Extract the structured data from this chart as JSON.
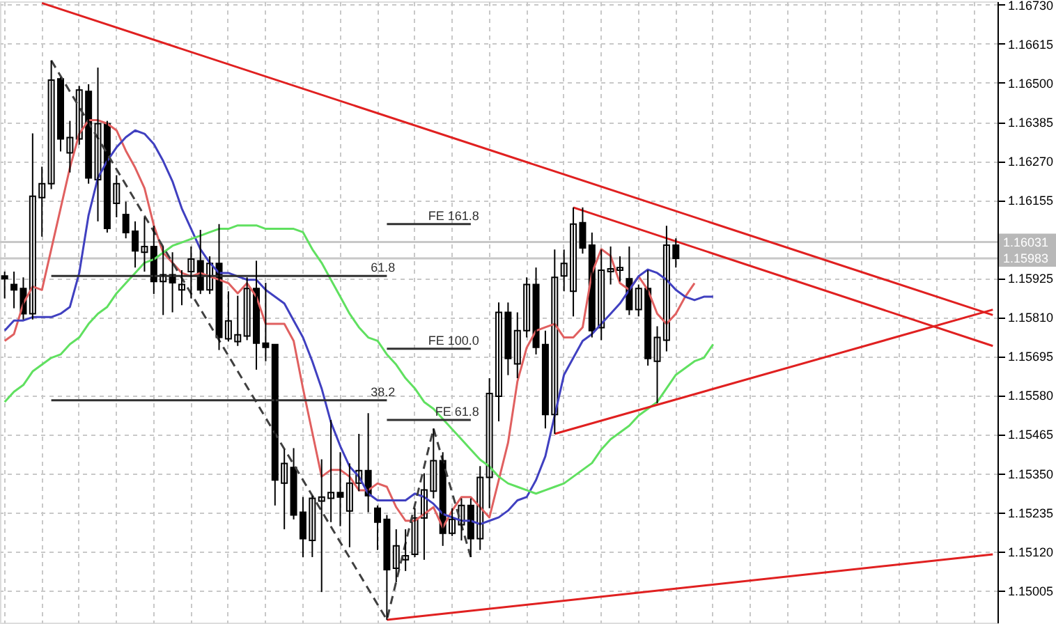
{
  "chart_data": {
    "type": "candlestick",
    "categories": [
      null,
      null,
      null,
      null,
      null,
      null,
      null,
      null,
      null,
      null,
      null,
      null,
      null,
      null,
      null,
      null,
      null,
      null,
      null,
      null,
      null,
      null,
      null,
      null,
      null,
      null,
      null,
      null,
      null,
      null,
      null,
      null,
      null,
      null,
      null,
      null,
      null,
      null,
      null,
      null,
      null,
      null,
      null,
      null,
      null,
      null,
      null,
      null,
      null,
      null,
      null,
      null,
      null,
      null,
      null,
      null,
      null,
      null,
      null,
      null,
      null,
      null,
      null,
      null,
      null,
      null,
      null,
      null,
      null,
      null,
      null,
      null,
      null,
      null,
      null,
      null,
      null,
      null,
      null,
      null,
      null,
      null,
      null,
      null,
      null,
      null,
      null,
      null,
      null,
      null,
      null,
      null,
      null,
      null,
      null,
      null,
      null,
      null,
      null,
      null,
      null,
      null,
      null,
      null,
      null,
      null,
      null
    ],
    "ohlc": [
      [
        1.15931,
        1.15944,
        1.15865,
        1.15923
      ],
      [
        1.15906,
        1.15944,
        1.15836,
        1.1589
      ],
      [
        1.15894,
        1.15927,
        1.15803,
        1.1582
      ],
      [
        1.1582,
        1.16351,
        1.15803,
        1.16166
      ],
      [
        1.16162,
        1.16253,
        1.16047,
        1.16203
      ],
      [
        1.16203,
        1.16566,
        1.16187,
        1.16508
      ],
      [
        1.16512,
        1.16516,
        1.16298,
        1.16335
      ],
      [
        1.16294,
        1.16388,
        1.16236,
        1.16339
      ],
      [
        1.16335,
        1.16491,
        1.16318,
        1.16479
      ],
      [
        1.16475,
        1.16496,
        1.16203,
        1.1622
      ],
      [
        1.16215,
        1.16545,
        1.16092,
        1.1638
      ],
      [
        1.1638,
        1.16388,
        1.16059,
        1.16071
      ],
      [
        1.16145,
        1.16228,
        1.16104,
        1.16203
      ],
      [
        1.16112,
        1.1615,
        1.16042,
        1.16059
      ],
      [
        1.16063,
        1.16092,
        1.15956,
        1.16005
      ],
      [
        1.16001,
        1.16104,
        1.15944,
        1.16018
      ],
      [
        1.16018,
        1.16079,
        1.15878,
        1.15915
      ],
      [
        1.15915,
        1.16018,
        1.15816,
        1.15935
      ],
      [
        1.15935,
        1.16001,
        1.15824,
        1.15911
      ],
      [
        1.1589,
        1.15948,
        1.15845,
        1.15906
      ],
      [
        1.15944,
        1.16018,
        1.15865,
        1.15981
      ],
      [
        1.15976,
        1.16067,
        1.15878,
        1.1589
      ],
      [
        1.1589,
        1.15989,
        1.15878,
        1.15968
      ],
      [
        1.15968,
        1.16084,
        1.15713,
        1.1575
      ],
      [
        1.15746,
        1.15886,
        1.15738,
        1.15799
      ],
      [
        1.15738,
        1.15873,
        1.15725,
        1.15758
      ],
      [
        1.15754,
        1.15927,
        1.15742,
        1.15894
      ],
      [
        1.15894,
        1.15976,
        1.15655,
        1.15733
      ],
      [
        1.15733,
        1.15911,
        1.1568,
        1.15721
      ],
      [
        1.15729,
        1.15729,
        1.15255,
        1.1533
      ],
      [
        1.15321,
        1.1542,
        1.15185,
        1.15379
      ],
      [
        1.15367,
        1.15424,
        1.15214,
        1.15227
      ],
      [
        1.15235,
        1.1528,
        1.15103,
        1.15157
      ],
      [
        1.15152,
        1.15284,
        1.15103,
        1.15276
      ],
      [
        1.15268,
        1.15391,
        1.15,
        1.1528
      ],
      [
        1.15276,
        1.15507,
        1.15206,
        1.15293
      ],
      [
        1.15293,
        1.15412,
        1.15194,
        1.1528
      ],
      [
        1.15239,
        1.15379,
        1.15132,
        1.15321
      ],
      [
        1.15321,
        1.15466,
        1.15297,
        1.15358
      ],
      [
        1.15358,
        1.15527,
        1.15235,
        1.15284
      ],
      [
        1.15247,
        1.15255,
        1.15124,
        1.15206
      ],
      [
        1.15214,
        1.15227,
        1.14918,
        1.15066
      ],
      [
        1.1507,
        1.15185,
        1.15029,
        1.15136
      ],
      [
        1.15095,
        1.15185,
        1.15062,
        1.15107
      ],
      [
        1.15111,
        1.15247,
        1.15103,
        1.15218
      ],
      [
        1.15218,
        1.1535,
        1.15095,
        1.15301
      ],
      [
        1.15297,
        1.15482,
        1.15276,
        1.15387
      ],
      [
        1.15387,
        1.15412,
        1.15136,
        1.15173
      ],
      [
        1.15173,
        1.15247,
        1.15165,
        1.15214
      ],
      [
        1.15198,
        1.15276,
        1.15152,
        1.15255
      ],
      [
        1.15255,
        1.15276,
        1.15103,
        1.15157
      ],
      [
        1.15157,
        1.15371,
        1.15124,
        1.15338
      ],
      [
        1.15338,
        1.1563,
        1.15247,
        1.15585
      ],
      [
        1.15577,
        1.15853,
        1.15503,
        1.15824
      ],
      [
        1.15824,
        1.15853,
        1.15639,
        1.15688
      ],
      [
        1.15672,
        1.15824,
        1.1563,
        1.1577
      ],
      [
        1.1577,
        1.15927,
        1.1575,
        1.15906
      ],
      [
        1.15906,
        1.15956,
        1.157,
        1.15721
      ],
      [
        1.15729,
        1.1577,
        1.15482,
        1.15523
      ],
      [
        1.15523,
        1.16009,
        1.15466,
        1.15927
      ],
      [
        1.15931,
        1.16009,
        1.15886,
        1.15968
      ],
      [
        1.15886,
        1.16133,
        1.15812,
        1.16084
      ],
      [
        1.16088,
        1.16133,
        1.15997,
        1.16014
      ],
      [
        1.16022,
        1.16059,
        1.1575,
        1.1577
      ],
      [
        1.15779,
        1.16009,
        1.15742,
        1.15948
      ],
      [
        1.15944,
        1.16018,
        1.15906,
        1.15952
      ],
      [
        1.15948,
        1.15989,
        1.15915,
        1.15956
      ],
      [
        1.15923,
        1.16018,
        1.15816,
        1.15832
      ],
      [
        1.15832,
        1.15906,
        1.15812,
        1.15894
      ],
      [
        1.15894,
        1.15948,
        1.15667,
        1.15688
      ],
      [
        1.1568,
        1.15783,
        1.15556,
        1.1575
      ],
      [
        1.15742,
        1.16079,
        1.15709,
        1.16022
      ],
      [
        1.16022,
        1.16042,
        1.15956,
        1.15983
      ],
      null,
      null,
      null,
      null,
      null,
      null,
      null,
      null,
      null,
      null,
      null,
      null,
      null,
      null,
      null,
      null,
      null,
      null,
      null,
      null,
      null,
      null,
      null,
      null,
      null,
      null,
      null,
      null,
      null,
      null,
      null,
      null,
      null,
      null
    ],
    "series": [
      {
        "type": "line",
        "color": "#e06060",
        "values": [
          1.1574,
          1.1576,
          1.1585,
          1.159,
          1.1589,
          1.1601,
          1.1613,
          1.1625,
          1.1635,
          1.1639,
          1.1639,
          1.1638,
          1.1636,
          1.163,
          1.1625,
          1.1619,
          1.1608,
          1.16,
          1.1597,
          1.1594,
          1.1593,
          1.1594,
          1.1593,
          1.1592,
          1.1591,
          1.1588,
          1.1591,
          1.1587,
          1.1579,
          1.1579,
          1.1579,
          1.1574,
          1.156,
          1.1547,
          1.1534,
          1.1536,
          1.1536,
          1.1534,
          1.153,
          1.153,
          1.1532,
          1.1531,
          1.1525,
          1.1521,
          1.1521,
          1.1523,
          1.1525,
          1.1519,
          1.1524,
          1.1528,
          1.1528,
          1.1525,
          1.1522,
          1.1533,
          1.1544,
          1.1562,
          1.1572,
          1.1577,
          1.1578,
          1.1579,
          1.1575,
          1.1575,
          1.1578,
          1.1594,
          1.1601,
          1.1599,
          1.1591,
          1.1589,
          1.1593,
          1.1589,
          1.1582,
          1.1579,
          1.1582,
          1.1587,
          1.1591,
          null,
          null,
          null,
          null,
          null,
          null,
          null,
          null,
          null,
          null,
          null,
          null,
          null,
          null,
          null,
          null,
          null,
          null,
          null,
          null,
          null,
          null,
          null,
          null,
          null,
          null,
          null,
          null,
          null,
          null,
          null,
          null
        ]
      },
      {
        "type": "line",
        "color": "#4040c0",
        "values": [
          1.1577,
          1.158,
          1.158,
          1.1581,
          1.1581,
          1.1581,
          1.1582,
          1.1584,
          1.1594,
          1.1611,
          1.1622,
          1.1627,
          1.1631,
          1.1634,
          1.1636,
          1.1635,
          1.1632,
          1.1627,
          1.1621,
          1.1613,
          1.1607,
          1.1601,
          1.1597,
          1.1594,
          1.1594,
          1.1593,
          1.1592,
          1.1592,
          1.1589,
          1.1587,
          1.1585,
          1.158,
          1.1575,
          1.1568,
          1.156,
          1.155,
          1.1543,
          1.1537,
          1.1534,
          1.1529,
          1.1527,
          1.1527,
          1.1527,
          1.1527,
          1.1529,
          1.1528,
          1.1526,
          1.1523,
          1.1522,
          1.1521,
          1.1521,
          1.152,
          1.1521,
          1.1522,
          1.1524,
          1.1527,
          1.1528,
          1.1533,
          1.154,
          1.1552,
          1.1564,
          1.1569,
          1.1574,
          1.1576,
          1.1579,
          1.1582,
          1.1585,
          1.1589,
          1.1593,
          1.1595,
          1.1594,
          1.1592,
          1.1589,
          1.1587,
          1.1586,
          1.1587,
          1.1587,
          null,
          null,
          null,
          null,
          null,
          null,
          null,
          null,
          null,
          null,
          null,
          null,
          null,
          null,
          null,
          null,
          null,
          null,
          null,
          null,
          null,
          null,
          null,
          null,
          null,
          null,
          null,
          null,
          null,
          null
        ]
      },
      {
        "type": "line",
        "color": "#60e060",
        "values": [
          1.1556,
          1.1559,
          1.1561,
          1.1565,
          1.1567,
          1.1569,
          1.157,
          1.1573,
          1.1575,
          1.1579,
          1.1582,
          1.1584,
          1.1588,
          1.1591,
          1.1594,
          1.1597,
          1.1598,
          1.16,
          1.1602,
          1.1603,
          1.1604,
          1.1605,
          1.1606,
          1.1607,
          1.1607,
          1.1608,
          1.1608,
          1.1608,
          1.1607,
          1.1607,
          1.1607,
          1.1607,
          1.1606,
          1.1601,
          1.1597,
          1.1592,
          1.1587,
          1.1582,
          1.1578,
          1.1575,
          1.1574,
          1.157,
          1.1567,
          1.1563,
          1.156,
          1.1556,
          1.1554,
          1.1551,
          1.1548,
          1.1545,
          1.1542,
          1.1539,
          1.1537,
          1.1534,
          1.1532,
          1.1531,
          1.153,
          1.1529,
          1.153,
          1.1531,
          1.1532,
          1.1534,
          1.1536,
          1.1538,
          1.1542,
          1.1545,
          1.1547,
          1.1549,
          1.1552,
          1.1554,
          1.1556,
          1.156,
          1.1564,
          1.1566,
          1.1568,
          1.1569,
          1.1573,
          null,
          null,
          null,
          null,
          null,
          null,
          null,
          null,
          null,
          null,
          null,
          null,
          null,
          null,
          null,
          null,
          null,
          null,
          null,
          null,
          null,
          null,
          null,
          null,
          null,
          null,
          null,
          null,
          null,
          null
        ]
      },
      {
        "type": "line",
        "color": "#e02020",
        "values": [
          null,
          null,
          null,
          null,
          1.16735,
          null,
          null,
          null,
          null,
          null,
          null,
          null,
          null,
          null,
          null,
          null,
          null,
          null,
          null,
          null,
          null,
          null,
          null,
          null,
          null,
          null,
          null,
          null,
          null,
          null,
          null,
          null,
          null,
          null,
          null,
          null,
          null,
          null,
          null,
          null,
          null,
          null,
          null,
          null,
          null,
          null,
          null,
          null,
          null,
          null,
          null,
          null,
          null,
          null,
          null,
          null,
          null,
          null,
          null,
          null,
          null,
          null,
          null,
          null,
          null,
          null,
          null,
          null,
          null,
          null,
          null,
          null,
          null,
          null,
          null,
          null,
          null,
          null,
          null,
          null,
          null,
          null,
          null,
          null,
          null,
          null,
          null,
          null,
          null,
          null,
          null,
          null,
          null,
          null,
          null,
          null,
          null,
          null,
          null,
          null,
          null,
          null,
          null,
          null,
          null,
          null,
          1.15816
        ]
      },
      {
        "type": "line",
        "color": "#e02020",
        "values": [
          null,
          null,
          null,
          null,
          null,
          null,
          null,
          null,
          null,
          null,
          null,
          null,
          null,
          null,
          null,
          null,
          null,
          null,
          null,
          null,
          null,
          null,
          null,
          null,
          null,
          null,
          null,
          null,
          null,
          null,
          null,
          null,
          null,
          null,
          null,
          null,
          null,
          null,
          null,
          null,
          null,
          null,
          null,
          null,
          null,
          null,
          null,
          null,
          null,
          null,
          null,
          null,
          null,
          null,
          null,
          null,
          null,
          null,
          null,
          null,
          null,
          1.16133,
          null,
          null,
          null,
          null,
          null,
          null,
          null,
          null,
          null,
          null,
          null,
          null,
          null,
          null,
          null,
          null,
          null,
          null,
          null,
          null,
          null,
          null,
          null,
          null,
          null,
          null,
          null,
          null,
          null,
          null,
          null,
          null,
          null,
          null,
          null,
          null,
          null,
          null,
          null,
          null,
          null,
          null,
          null,
          null,
          1.15725
        ]
      },
      {
        "type": "line",
        "color": "#e02020",
        "values": [
          null,
          null,
          null,
          null,
          null,
          null,
          null,
          null,
          null,
          null,
          null,
          null,
          null,
          null,
          null,
          null,
          null,
          null,
          null,
          null,
          null,
          null,
          null,
          null,
          null,
          null,
          null,
          null,
          null,
          null,
          null,
          null,
          null,
          null,
          null,
          null,
          null,
          null,
          null,
          null,
          null,
          null,
          null,
          null,
          null,
          null,
          null,
          null,
          null,
          null,
          null,
          null,
          null,
          null,
          null,
          null,
          null,
          null,
          null,
          1.15466,
          null,
          null,
          null,
          null,
          null,
          null,
          null,
          null,
          null,
          null,
          null,
          null,
          null,
          null,
          null,
          null,
          null,
          null,
          null,
          null,
          null,
          null,
          null,
          null,
          null,
          null,
          null,
          null,
          null,
          null,
          null,
          null,
          null,
          null,
          null,
          null,
          null,
          null,
          null,
          null,
          null,
          null,
          null,
          null,
          null,
          null,
          1.15832
        ]
      },
      {
        "type": "line",
        "color": "#e02020",
        "values": [
          null,
          null,
          null,
          null,
          null,
          null,
          null,
          null,
          null,
          null,
          null,
          null,
          null,
          null,
          null,
          null,
          null,
          null,
          null,
          null,
          null,
          null,
          null,
          null,
          null,
          null,
          null,
          null,
          null,
          null,
          null,
          null,
          null,
          null,
          null,
          null,
          null,
          null,
          null,
          null,
          null,
          1.14918,
          null,
          null,
          null,
          null,
          null,
          null,
          null,
          null,
          null,
          null,
          null,
          null,
          null,
          null,
          null,
          null,
          null,
          null,
          null,
          null,
          null,
          null,
          null,
          null,
          null,
          null,
          null,
          null,
          null,
          null,
          null,
          null,
          null,
          null,
          null,
          null,
          null,
          null,
          null,
          null,
          null,
          null,
          null,
          null,
          null,
          null,
          null,
          null,
          null,
          null,
          null,
          null,
          null,
          null,
          null,
          null,
          null,
          null,
          null,
          null,
          null,
          null,
          null,
          null,
          1.15111
        ]
      },
      {
        "type": "line",
        "color": "#404040",
        "line_style": "dashed",
        "values": [
          null,
          null,
          null,
          null,
          null,
          1.16566,
          null,
          null,
          null,
          null,
          null,
          null,
          null,
          null,
          null,
          null,
          null,
          null,
          null,
          null,
          null,
          null,
          null,
          null,
          null,
          null,
          null,
          null,
          null,
          null,
          null,
          null,
          null,
          null,
          null,
          null,
          null,
          null,
          null,
          null,
          null,
          1.14918,
          null,
          null,
          null,
          null,
          1.15482,
          null,
          null,
          null,
          1.15103,
          null,
          null,
          null,
          null,
          null,
          null,
          null,
          null,
          null,
          null,
          null,
          null,
          null,
          null,
          null,
          null,
          null,
          null,
          null,
          null,
          null,
          null,
          null,
          null,
          null,
          null,
          null,
          null,
          null,
          null,
          null,
          null,
          null,
          null,
          null,
          null,
          null,
          null,
          null,
          null,
          null,
          null,
          null,
          null,
          null,
          null,
          null,
          null,
          null,
          null,
          null,
          null,
          null,
          null,
          null,
          null
        ]
      },
      {
        "type": "line",
        "name": "61.8",
        "color": "#303030",
        "values": [
          null,
          null,
          null,
          null,
          null,
          1.15931,
          null,
          null,
          null,
          null,
          null,
          null,
          null,
          null,
          null,
          null,
          null,
          null,
          null,
          null,
          null,
          null,
          null,
          null,
          null,
          null,
          null,
          null,
          null,
          null,
          null,
          null,
          null,
          null,
          null,
          null,
          null,
          null,
          null,
          null,
          null,
          1.15931,
          null,
          null,
          null,
          null,
          null,
          null,
          null,
          null,
          null,
          null,
          null,
          null,
          null,
          null,
          null,
          null,
          null,
          null,
          null,
          null,
          null,
          null,
          null,
          null,
          null,
          null,
          null,
          null,
          null,
          null,
          null,
          null,
          null,
          null,
          null,
          null,
          null,
          null,
          null,
          null,
          null,
          null,
          null,
          null,
          null,
          null,
          null,
          null,
          null,
          null,
          null,
          null,
          null,
          null,
          null,
          null,
          null,
          null,
          null,
          null,
          null,
          null,
          null,
          null,
          null
        ]
      },
      {
        "type": "line",
        "name": "38.2",
        "color": "#303030",
        "values": [
          null,
          null,
          null,
          null,
          null,
          1.15565,
          null,
          null,
          null,
          null,
          null,
          null,
          null,
          null,
          null,
          null,
          null,
          null,
          null,
          null,
          null,
          null,
          null,
          null,
          null,
          null,
          null,
          null,
          null,
          null,
          null,
          null,
          null,
          null,
          null,
          null,
          null,
          null,
          null,
          null,
          null,
          1.15565,
          null,
          null,
          null,
          null,
          null,
          null,
          null,
          null,
          null,
          null,
          null,
          null,
          null,
          null,
          null,
          null,
          null,
          null,
          null,
          null,
          null,
          null,
          null,
          null,
          null,
          null,
          null,
          null,
          null,
          null,
          null,
          null,
          null,
          null,
          null,
          null,
          null,
          null,
          null,
          null,
          null,
          null,
          null,
          null,
          null,
          null,
          null,
          null,
          null,
          null,
          null,
          null,
          null,
          null,
          null,
          null,
          null,
          null,
          null,
          null,
          null,
          null,
          null,
          null,
          null
        ]
      },
      {
        "type": "line",
        "name": "FE 161.8",
        "color": "#303030",
        "values": [
          null,
          null,
          null,
          null,
          null,
          null,
          null,
          null,
          null,
          null,
          null,
          null,
          null,
          null,
          null,
          null,
          null,
          null,
          null,
          null,
          null,
          null,
          null,
          null,
          null,
          null,
          null,
          null,
          null,
          null,
          null,
          null,
          null,
          null,
          null,
          null,
          null,
          null,
          null,
          null,
          null,
          1.16084,
          null,
          null,
          null,
          null,
          null,
          null,
          null,
          null,
          1.16084,
          null,
          null,
          null,
          null,
          null,
          null,
          null,
          null,
          null,
          null,
          null,
          null,
          null,
          null,
          null,
          null,
          null,
          null,
          null,
          null,
          null,
          null,
          null,
          null,
          null,
          null,
          null,
          null,
          null,
          null,
          null,
          null,
          null,
          null,
          null,
          null,
          null,
          null,
          null,
          null,
          null,
          null,
          null,
          null,
          null,
          null,
          null,
          null,
          null,
          null,
          null,
          null,
          null,
          null,
          null,
          null
        ]
      },
      {
        "type": "line",
        "name": "FE 100.0",
        "color": "#303030",
        "values": [
          null,
          null,
          null,
          null,
          null,
          null,
          null,
          null,
          null,
          null,
          null,
          null,
          null,
          null,
          null,
          null,
          null,
          null,
          null,
          null,
          null,
          null,
          null,
          null,
          null,
          null,
          null,
          null,
          null,
          null,
          null,
          null,
          null,
          null,
          null,
          null,
          null,
          null,
          null,
          null,
          null,
          1.15717,
          null,
          null,
          null,
          null,
          null,
          null,
          null,
          null,
          1.15717,
          null,
          null,
          null,
          null,
          null,
          null,
          null,
          null,
          null,
          null,
          null,
          null,
          null,
          null,
          null,
          null,
          null,
          null,
          null,
          null,
          null,
          null,
          null,
          null,
          null,
          null,
          null,
          null,
          null,
          null,
          null,
          null,
          null,
          null,
          null,
          null,
          null,
          null,
          null,
          null,
          null,
          null,
          null,
          null,
          null,
          null,
          null,
          null,
          null,
          null,
          null,
          null,
          null,
          null,
          null,
          null
        ]
      },
      {
        "type": "line",
        "name": "FE 61.8",
        "color": "#303030",
        "values": [
          null,
          null,
          null,
          null,
          null,
          null,
          null,
          null,
          null,
          null,
          null,
          null,
          null,
          null,
          null,
          null,
          null,
          null,
          null,
          null,
          null,
          null,
          null,
          null,
          null,
          null,
          null,
          null,
          null,
          null,
          null,
          null,
          null,
          null,
          null,
          null,
          null,
          null,
          null,
          null,
          null,
          1.15507,
          null,
          null,
          null,
          null,
          null,
          null,
          null,
          null,
          1.15507,
          null,
          null,
          null,
          null,
          null,
          null,
          null,
          null,
          null,
          null,
          null,
          null,
          null,
          null,
          null,
          null,
          null,
          null,
          null,
          null,
          null,
          null,
          null,
          null,
          null,
          null,
          null,
          null,
          null,
          null,
          null,
          null,
          null,
          null,
          null,
          null,
          null,
          null,
          null,
          null,
          null,
          null,
          null,
          null,
          null,
          null,
          null,
          null,
          null,
          null,
          null,
          null,
          null,
          null,
          null,
          null
        ]
      }
    ],
    "ylim": [
      1.1491,
      1.1674
    ],
    "yticks": [
      {
        "value": 1.1673,
        "label": "1.16730"
      },
      1.16615,
      {
        "value": 1.165,
        "label": "1.16500"
      },
      1.16385,
      {
        "value": 1.1627,
        "label": "1.16270"
      },
      1.16155,
      1.15925,
      {
        "value": 1.1581,
        "label": "1.15810"
      },
      1.15695,
      {
        "value": 1.1558,
        "label": "1.15580"
      },
      1.15465,
      {
        "value": 1.1535,
        "label": "1.15350"
      },
      1.15235,
      {
        "value": 1.1512,
        "label": "1.15120"
      },
      1.15005
    ],
    "ref_lines": [
      {
        "axis": "y",
        "value": 1.16031,
        "label": "1.16031",
        "color": "#c8c8c8"
      },
      {
        "axis": "y",
        "value": 1.15983,
        "label": "1.15983",
        "color": "#c8c8c8"
      }
    ],
    "grid": true,
    "tick_labels": "y"
  }
}
